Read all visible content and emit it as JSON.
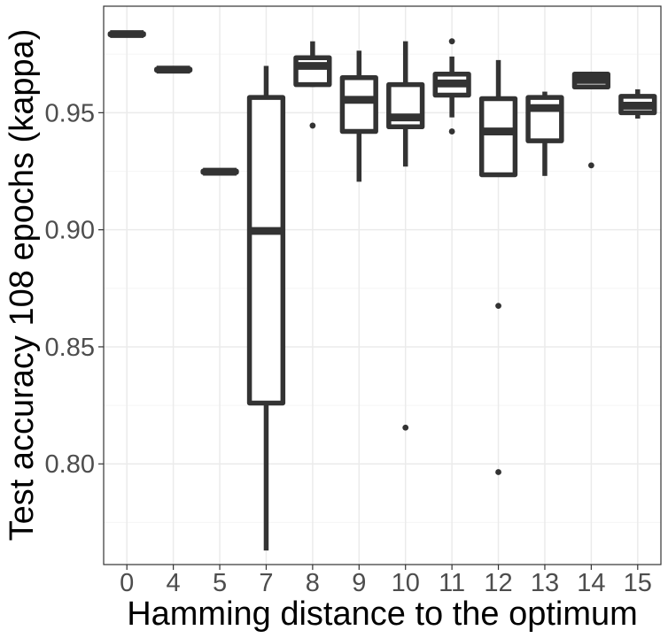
{
  "chart_data": {
    "type": "boxplot",
    "title": "",
    "xlabel": "Hamming distance to the optimum",
    "ylabel": "Test accuracy 108 epochs (kappa)",
    "ylim": [
      0.757,
      0.9955
    ],
    "yticks": [
      0.8,
      0.85,
      0.9,
      0.95
    ],
    "ytick_labels": [
      "0.80",
      "0.85",
      "0.90",
      "0.95"
    ],
    "grid": true,
    "categories": [
      "0",
      "4",
      "5",
      "7",
      "8",
      "9",
      "10",
      "11",
      "12",
      "13",
      "14",
      "15"
    ],
    "boxes": [
      {
        "category": "0",
        "whisker_low": 0.9833,
        "q1": 0.9833,
        "median": 0.9836,
        "q3": 0.9838,
        "whisker_high": 0.984,
        "outliers": []
      },
      {
        "category": "4",
        "whisker_low": 0.9681,
        "q1": 0.9681,
        "median": 0.9684,
        "q3": 0.9686,
        "whisker_high": 0.9688,
        "outliers": []
      },
      {
        "category": "5",
        "whisker_low": 0.9245,
        "q1": 0.9245,
        "median": 0.9248,
        "q3": 0.9251,
        "whisker_high": 0.9253,
        "outliers": []
      },
      {
        "category": "7",
        "whisker_low": 0.763,
        "q1": 0.826,
        "median": 0.8995,
        "q3": 0.9565,
        "whisker_high": 0.97,
        "outliers": []
      },
      {
        "category": "8",
        "whisker_low": 0.961,
        "q1": 0.962,
        "median": 0.97,
        "q3": 0.9735,
        "whisker_high": 0.9805,
        "outliers": [
          0.9445
        ]
      },
      {
        "category": "9",
        "whisker_low": 0.9205,
        "q1": 0.942,
        "median": 0.9555,
        "q3": 0.965,
        "whisker_high": 0.9765,
        "outliers": []
      },
      {
        "category": "10",
        "whisker_low": 0.927,
        "q1": 0.944,
        "median": 0.948,
        "q3": 0.962,
        "whisker_high": 0.9805,
        "outliers": [
          0.8155
        ]
      },
      {
        "category": "11",
        "whisker_low": 0.948,
        "q1": 0.9575,
        "median": 0.9625,
        "q3": 0.9665,
        "whisker_high": 0.974,
        "outliers": [
          0.9805,
          0.942
        ]
      },
      {
        "category": "12",
        "whisker_low": 0.9235,
        "q1": 0.9235,
        "median": 0.942,
        "q3": 0.956,
        "whisker_high": 0.9725,
        "outliers": [
          0.8675,
          0.7965
        ]
      },
      {
        "category": "13",
        "whisker_low": 0.923,
        "q1": 0.938,
        "median": 0.952,
        "q3": 0.9565,
        "whisker_high": 0.959,
        "outliers": []
      },
      {
        "category": "14",
        "whisker_low": 0.961,
        "q1": 0.961,
        "median": 0.964,
        "q3": 0.9665,
        "whisker_high": 0.967,
        "outliers": [
          0.9275
        ]
      },
      {
        "category": "15",
        "whisker_low": 0.9475,
        "q1": 0.95,
        "median": 0.953,
        "q3": 0.957,
        "whisker_high": 0.96,
        "outliers": []
      }
    ],
    "colors": {
      "box_stroke": "#333333",
      "grid_major": "#ebebeb",
      "grid_minor": "#f5f5f5",
      "panel_border": "#333333",
      "tick_label": "#4d4d4d",
      "axis_title": "#000000",
      "background": "#ffffff"
    }
  }
}
